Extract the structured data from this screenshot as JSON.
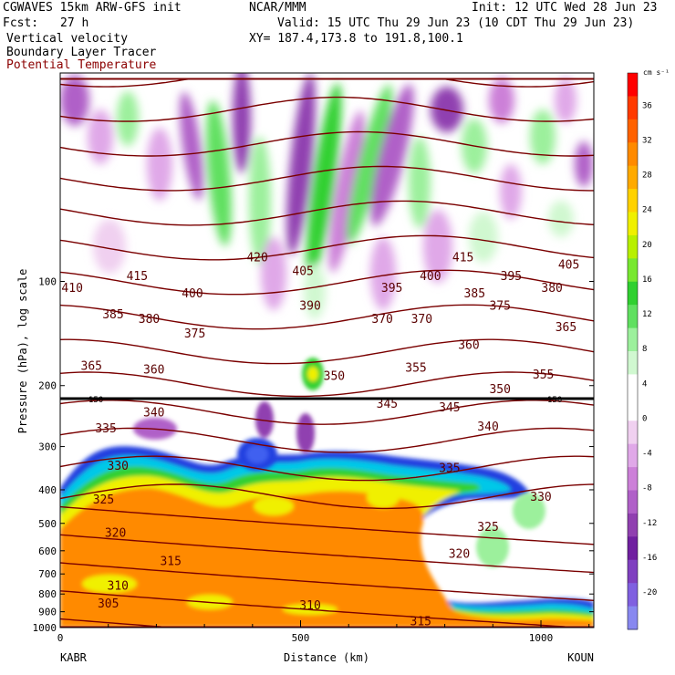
{
  "header": {
    "model": "CGWAVES 15km ARW-GFS init",
    "source": "NCAR/MMM",
    "init": "Init: 12 UTC Wed 28 Jun 23",
    "fcst_label": "Fcst:",
    "fcst_value": "27 h",
    "valid": "Valid: 15 UTC Thu 29 Jun 23 (10 CDT Thu 29 Jun 23)",
    "field1": "Vertical velocity",
    "field2": "Boundary Layer Tracer",
    "field3": "Potential Temperature",
    "xy": "XY= 187.4,173.8 to 191.8,100.1"
  },
  "colors": {
    "theta_contour": "#7a0000",
    "field3_text": "#8b0000",
    "tropopause": "#000000"
  },
  "chart_data": {
    "type": "heatmap",
    "xlabel": "Distance (km)",
    "ylabel": "Pressure (hPa), log scale",
    "x_ticks": [
      0,
      500,
      1000
    ],
    "xlim": [
      0,
      1110
    ],
    "y_ticks": [
      100,
      200,
      300,
      400,
      500,
      600,
      700,
      800,
      900,
      1000
    ],
    "ylim": [
      1000,
      25
    ],
    "y_scale": "log",
    "left_endpoint": "KABR",
    "right_endpoint": "KOUN",
    "tropopause_label": "150",
    "colorbar": {
      "unit": "cm s⁻¹",
      "tick_labels": [
        36,
        32,
        28,
        24,
        20,
        16,
        12,
        8,
        4,
        0,
        -4,
        -8,
        -12,
        -16,
        -20
      ],
      "colors": [
        "#ff0000",
        "#ff3a00",
        "#ff6200",
        "#ff8a00",
        "#ffaa00",
        "#ffd200",
        "#f0f000",
        "#b8f000",
        "#78e830",
        "#30d030",
        "#60e060",
        "#9cf09c",
        "#d0f8d0",
        "#ffffff",
        "#ffffff",
        "#f0d0f0",
        "#e0a8e8",
        "#cc80d8",
        "#b060c8",
        "#9040b0",
        "#7020a0",
        "#8040c0",
        "#8060e0",
        "#8888f0"
      ]
    },
    "theta_labels": [
      {
        "v": "420",
        "x": 410,
        "p": 85
      },
      {
        "v": "415",
        "x": 160,
        "p": 96
      },
      {
        "v": "415",
        "x": 838,
        "p": 85
      },
      {
        "v": "410",
        "x": 25,
        "p": 104
      },
      {
        "v": "405",
        "x": 505,
        "p": 93
      },
      {
        "v": "405",
        "x": 1058,
        "p": 89
      },
      {
        "v": "400",
        "x": 275,
        "p": 108
      },
      {
        "v": "400",
        "x": 770,
        "p": 96
      },
      {
        "v": "395",
        "x": 690,
        "p": 104
      },
      {
        "v": "395",
        "x": 938,
        "p": 96
      },
      {
        "v": "390",
        "x": 520,
        "p": 117
      },
      {
        "v": "385",
        "x": 110,
        "p": 124
      },
      {
        "v": "385",
        "x": 862,
        "p": 108
      },
      {
        "v": "380",
        "x": 185,
        "p": 128
      },
      {
        "v": "380",
        "x": 1023,
        "p": 104
      },
      {
        "v": "375",
        "x": 280,
        "p": 141
      },
      {
        "v": "375",
        "x": 915,
        "p": 117
      },
      {
        "v": "370",
        "x": 670,
        "p": 128
      },
      {
        "v": "370",
        "x": 752,
        "p": 128
      },
      {
        "v": "365",
        "x": 65,
        "p": 175
      },
      {
        "v": "365",
        "x": 1052,
        "p": 135
      },
      {
        "v": "360",
        "x": 195,
        "p": 179
      },
      {
        "v": "360",
        "x": 850,
        "p": 152
      },
      {
        "v": "355",
        "x": 740,
        "p": 177
      },
      {
        "v": "355",
        "x": 1005,
        "p": 185
      },
      {
        "v": "350",
        "x": 570,
        "p": 187
      },
      {
        "v": "350",
        "x": 915,
        "p": 204
      },
      {
        "v": "345",
        "x": 680,
        "p": 225
      },
      {
        "v": "345",
        "x": 810,
        "p": 230
      },
      {
        "v": "340",
        "x": 195,
        "p": 238
      },
      {
        "v": "340",
        "x": 890,
        "p": 262
      },
      {
        "v": "335",
        "x": 95,
        "p": 265
      },
      {
        "v": "335",
        "x": 810,
        "p": 345
      },
      {
        "v": "330",
        "x": 120,
        "p": 340
      },
      {
        "v": "330",
        "x": 1000,
        "p": 418
      },
      {
        "v": "325",
        "x": 90,
        "p": 425
      },
      {
        "v": "325",
        "x": 890,
        "p": 510
      },
      {
        "v": "320",
        "x": 115,
        "p": 530
      },
      {
        "v": "320",
        "x": 830,
        "p": 610
      },
      {
        "v": "315",
        "x": 230,
        "p": 640
      },
      {
        "v": "315",
        "x": 750,
        "p": 955
      },
      {
        "v": "310",
        "x": 120,
        "p": 755
      },
      {
        "v": "310",
        "x": 520,
        "p": 860
      },
      {
        "v": "305",
        "x": 100,
        "p": 850
      }
    ]
  }
}
